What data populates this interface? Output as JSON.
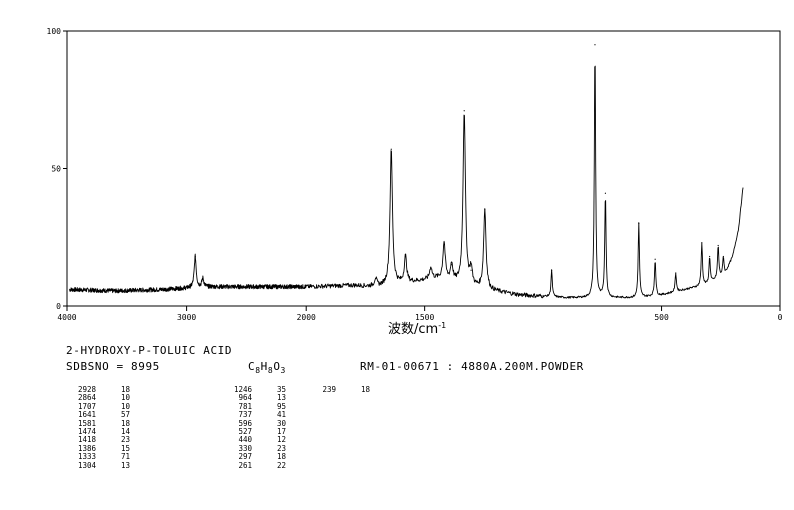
{
  "chart_data": {
    "type": "line",
    "x_axis": {
      "label": "波数/cm",
      "label_superscript": "-1",
      "range": [
        4000,
        0
      ],
      "ticks": [
        {
          "value": 4000,
          "label": "4000"
        },
        {
          "value": 3000,
          "label": "3000"
        },
        {
          "value": 2000,
          "label": "2000"
        },
        {
          "value": 1500,
          "label": "1500"
        },
        {
          "value": 500,
          "label": "500"
        },
        {
          "value": 0,
          "label": "0"
        }
      ]
    },
    "y_axis": {
      "range": [
        0,
        100
      ],
      "ticks": [
        {
          "value": 100,
          "label": "100"
        },
        {
          "value": 50,
          "label": "50"
        },
        {
          "value": 0,
          "label": "0"
        }
      ]
    },
    "baseline": [
      [
        3980,
        6
      ],
      [
        3600,
        5.5
      ],
      [
        3200,
        6
      ],
      [
        2800,
        7
      ],
      [
        2400,
        7
      ],
      [
        2000,
        7
      ],
      [
        1800,
        7.5
      ],
      [
        1700,
        7
      ],
      [
        1450,
        10
      ],
      [
        1250,
        6
      ],
      [
        1100,
        4
      ],
      [
        900,
        3
      ],
      [
        700,
        3
      ],
      [
        600,
        3
      ],
      [
        500,
        4
      ],
      [
        400,
        6
      ],
      [
        300,
        8
      ],
      [
        230,
        12
      ],
      [
        200,
        18
      ],
      [
        175,
        28
      ],
      [
        160,
        40
      ],
      [
        155,
        44
      ]
    ],
    "peaks": [
      {
        "x": 2928,
        "y": 18
      },
      {
        "x": 2864,
        "y": 10
      },
      {
        "x": 1707,
        "y": 10
      },
      {
        "x": 1641,
        "y": 57
      },
      {
        "x": 1581,
        "y": 18
      },
      {
        "x": 1474,
        "y": 14
      },
      {
        "x": 1418,
        "y": 23
      },
      {
        "x": 1386,
        "y": 15
      },
      {
        "x": 1333,
        "y": 71
      },
      {
        "x": 1304,
        "y": 13
      },
      {
        "x": 1246,
        "y": 35
      },
      {
        "x": 964,
        "y": 13
      },
      {
        "x": 781,
        "y": 95
      },
      {
        "x": 737,
        "y": 41
      },
      {
        "x": 596,
        "y": 30
      },
      {
        "x": 527,
        "y": 17
      },
      {
        "x": 440,
        "y": 12
      },
      {
        "x": 330,
        "y": 23
      },
      {
        "x": 297,
        "y": 18
      },
      {
        "x": 261,
        "y": 22
      },
      {
        "x": 239,
        "y": 18
      }
    ]
  },
  "info": {
    "compound": "2-HYDROXY-P-TOLUIC ACID",
    "sdbs": "SDBSNO = 8995",
    "formula_parts": [
      "C",
      "8",
      "H",
      "8",
      "O",
      "3"
    ],
    "method": "RM-01-00671 : 4880A.200M.POWDER"
  },
  "peak_table": {
    "col1": [
      {
        "x": "2928",
        "y": "18"
      },
      {
        "x": "2864",
        "y": "10"
      },
      {
        "x": "1707",
        "y": "10"
      },
      {
        "x": "1641",
        "y": "57"
      },
      {
        "x": "1581",
        "y": "18"
      },
      {
        "x": "1474",
        "y": "14"
      },
      {
        "x": "1418",
        "y": "23"
      },
      {
        "x": "1386",
        "y": "15"
      },
      {
        "x": "1333",
        "y": "71"
      },
      {
        "x": "1304",
        "y": "13"
      }
    ],
    "col2": [
      {
        "x": "1246",
        "y": "35"
      },
      {
        "x": "964",
        "y": "13"
      },
      {
        "x": "781",
        "y": "95"
      },
      {
        "x": "737",
        "y": "41"
      },
      {
        "x": "596",
        "y": "30"
      },
      {
        "x": "527",
        "y": "17"
      },
      {
        "x": "440",
        "y": "12"
      },
      {
        "x": "330",
        "y": "23"
      },
      {
        "x": "297",
        "y": "18"
      },
      {
        "x": "261",
        "y": "22"
      }
    ],
    "col3": [
      {
        "x": "239",
        "y": "18"
      }
    ]
  }
}
